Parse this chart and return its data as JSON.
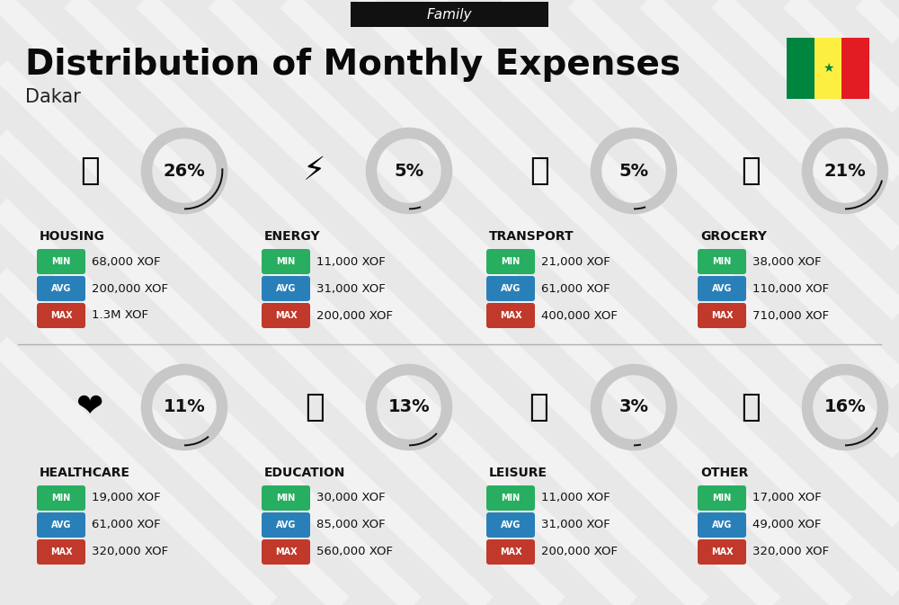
{
  "title": "Distribution of Monthly Expenses",
  "subtitle": "Family",
  "city": "Dakar",
  "bg_color": "#e8e8e8",
  "categories": [
    {
      "name": "HOUSING",
      "pct": 26,
      "min": "68,000 XOF",
      "avg": "200,000 XOF",
      "max": "1.3M XOF",
      "col": 0,
      "row": 0,
      "icon": "🏢"
    },
    {
      "name": "ENERGY",
      "pct": 5,
      "min": "11,000 XOF",
      "avg": "31,000 XOF",
      "max": "200,000 XOF",
      "col": 1,
      "row": 0,
      "icon": "⚡"
    },
    {
      "name": "TRANSPORT",
      "pct": 5,
      "min": "21,000 XOF",
      "avg": "61,000 XOF",
      "max": "400,000 XOF",
      "col": 2,
      "row": 0,
      "icon": "🚌"
    },
    {
      "name": "GROCERY",
      "pct": 21,
      "min": "38,000 XOF",
      "avg": "110,000 XOF",
      "max": "710,000 XOF",
      "col": 3,
      "row": 0,
      "icon": "🛒"
    },
    {
      "name": "HEALTHCARE",
      "pct": 11,
      "min": "19,000 XOF",
      "avg": "61,000 XOF",
      "max": "320,000 XOF",
      "col": 0,
      "row": 1,
      "icon": "❤️"
    },
    {
      "name": "EDUCATION",
      "pct": 13,
      "min": "30,000 XOF",
      "avg": "85,000 XOF",
      "max": "560,000 XOF",
      "col": 1,
      "row": 1,
      "icon": "🎓"
    },
    {
      "name": "LEISURE",
      "pct": 3,
      "min": "11,000 XOF",
      "avg": "31,000 XOF",
      "max": "200,000 XOF",
      "col": 2,
      "row": 1,
      "icon": "🛍️"
    },
    {
      "name": "OTHER",
      "pct": 16,
      "min": "17,000 XOF",
      "avg": "49,000 XOF",
      "max": "320,000 XOF",
      "col": 3,
      "row": 1,
      "icon": "👜"
    }
  ],
  "min_color": "#27ae60",
  "avg_color": "#2980b9",
  "max_color": "#c0392b",
  "arc_filled_color": "#111111",
  "arc_empty_color": "#c8c8c8",
  "header_bg": "#111111",
  "title_fontsize": 28,
  "city_fontsize": 15,
  "subtitle_fontsize": 11,
  "flag_colors": [
    "#00853F",
    "#FDEF42",
    "#E31B23"
  ]
}
